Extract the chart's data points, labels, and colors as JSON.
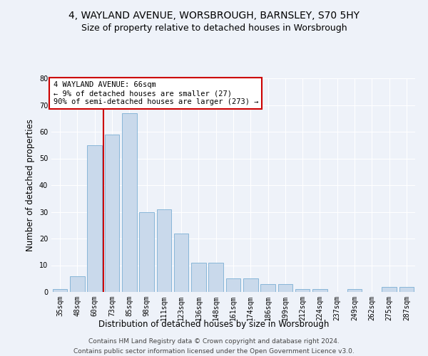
{
  "title1": "4, WAYLAND AVENUE, WORSBROUGH, BARNSLEY, S70 5HY",
  "title2": "Size of property relative to detached houses in Worsbrough",
  "xlabel": "Distribution of detached houses by size in Worsbrough",
  "ylabel": "Number of detached properties",
  "categories": [
    "35sqm",
    "48sqm",
    "60sqm",
    "73sqm",
    "85sqm",
    "98sqm",
    "111sqm",
    "123sqm",
    "136sqm",
    "148sqm",
    "161sqm",
    "174sqm",
    "186sqm",
    "199sqm",
    "212sqm",
    "224sqm",
    "237sqm",
    "249sqm",
    "262sqm",
    "275sqm",
    "287sqm"
  ],
  "values": [
    1,
    6,
    55,
    59,
    67,
    30,
    31,
    22,
    11,
    11,
    5,
    5,
    3,
    3,
    1,
    1,
    0,
    1,
    0,
    2,
    2
  ],
  "bar_color": "#c9d9eb",
  "bar_edge_color": "#7bafd4",
  "vline_color": "#cc0000",
  "vline_pos": 2.5,
  "annotation_line1": "4 WAYLAND AVENUE: 66sqm",
  "annotation_line2": "← 9% of detached houses are smaller (27)",
  "annotation_line3": "90% of semi-detached houses are larger (273) →",
  "annotation_box_facecolor": "#ffffff",
  "annotation_box_edgecolor": "#cc0000",
  "ylim": [
    0,
    80
  ],
  "yticks": [
    0,
    10,
    20,
    30,
    40,
    50,
    60,
    70,
    80
  ],
  "bg_color": "#eef2f9",
  "plot_bg_color": "#eef2f9",
  "title_fontsize": 10,
  "subtitle_fontsize": 9,
  "axis_label_fontsize": 8.5,
  "tick_fontsize": 7,
  "annotation_fontsize": 7.5,
  "footer_fontsize": 6.5,
  "footer1": "Contains HM Land Registry data © Crown copyright and database right 2024.",
  "footer2": "Contains public sector information licensed under the Open Government Licence v3.0."
}
